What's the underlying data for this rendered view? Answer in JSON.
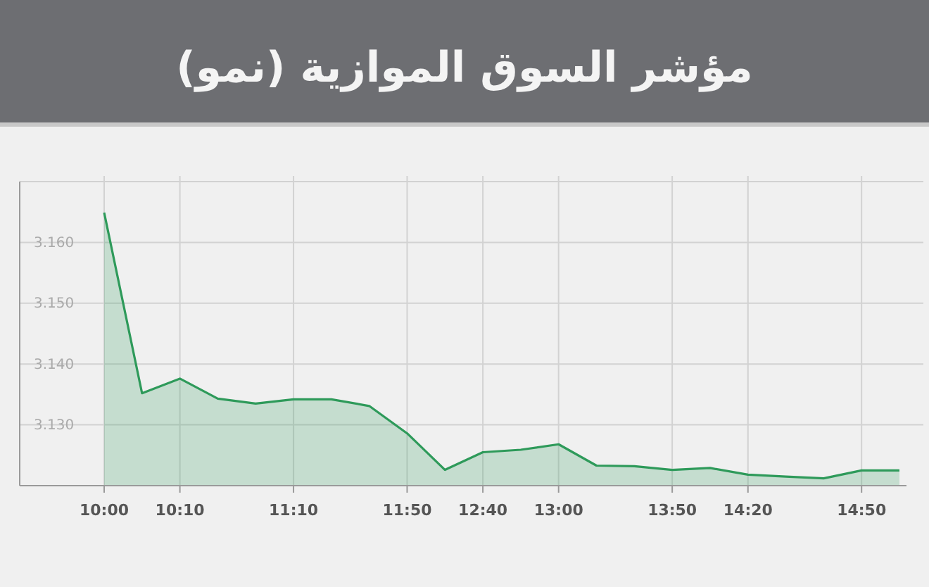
{
  "chart_data": {
    "type": "area",
    "title": "مؤشر السوق الموازية (نمو)",
    "categories": [
      "10:00",
      null,
      "10:10",
      null,
      null,
      "11:10",
      null,
      null,
      "11:50",
      null,
      "12:40",
      null,
      "13:00",
      null,
      null,
      "13:50",
      null,
      "14:20",
      null,
      null,
      "14:50",
      null
    ],
    "series": [
      {
        "color": "#2e9a5a",
        "values": [
          3.1649,
          3.1352,
          3.1376,
          3.1343,
          3.1335,
          3.1342,
          3.1342,
          3.1331,
          3.1286,
          3.1226,
          3.1255,
          3.1259,
          3.1268,
          3.1233,
          3.1232,
          3.1226,
          3.1229,
          3.1218,
          3.1215,
          3.1212,
          3.1225,
          3.1225
        ]
      }
    ],
    "ylim": [
      3.12,
      3.17
    ],
    "yticks": [
      {
        "value": 3.13,
        "label": "3.130"
      },
      {
        "value": 3.14,
        "label": "3.140"
      },
      {
        "value": 3.15,
        "label": "3.150"
      },
      {
        "value": 3.16,
        "label": "3.160"
      },
      {
        "value": 3.17,
        "label": null
      }
    ],
    "grid": true,
    "marker": "none",
    "line_style": "solid"
  }
}
